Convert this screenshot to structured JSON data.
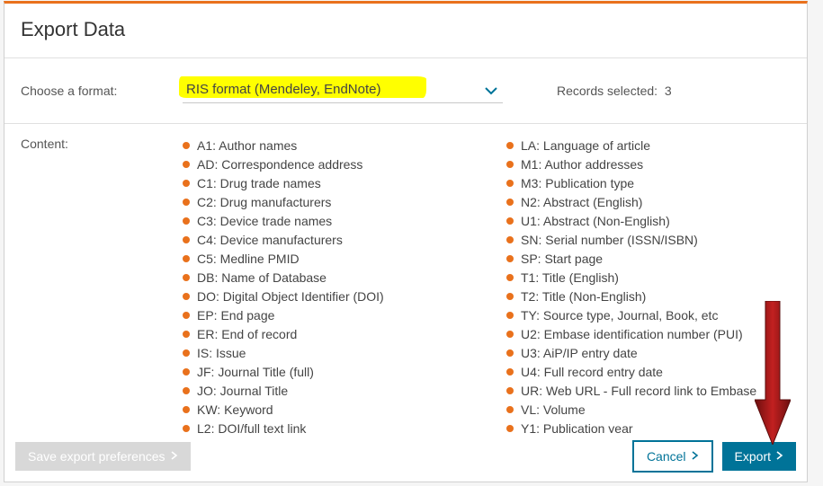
{
  "header": {
    "title": "Export Data"
  },
  "format": {
    "label": "Choose a format:",
    "selected": "RIS format (Mendeley, EndNote)",
    "highlight_color": "#ffff00"
  },
  "records": {
    "label": "Records selected:",
    "count": "3"
  },
  "content": {
    "label": "Content:",
    "bullet_color": "#e9711c",
    "left": [
      "A1: Author names",
      "AD: Correspondence address",
      "C1: Drug trade names",
      "C2: Drug manufacturers",
      "C3: Device trade names",
      "C4: Device manufacturers",
      "C5: Medline PMID",
      "DB: Name of Database",
      "DO: Digital Object Identifier (DOI)",
      "EP: End page",
      "ER: End of record",
      "IS: Issue",
      "JF: Journal Title (full)",
      "JO: Journal Title",
      "KW: Keyword",
      "L2: DOI/full text link"
    ],
    "right": [
      "LA: Language of article",
      "M1: Author addresses",
      "M3: Publication type",
      "N2: Abstract (English)",
      "U1: Abstract (Non-English)",
      "SN: Serial number (ISSN/ISBN)",
      "SP: Start page",
      "T1: Title (English)",
      "T2: Title (Non-English)",
      "TY: Source type, Journal, Book, etc",
      "U2: Embase identification number (PUI)",
      "U3: AiP/IP entry date",
      "U4: Full record entry date",
      "UR: Web URL - Full record link to Embase",
      "VL: Volume",
      "Y1: Publication year"
    ]
  },
  "footer": {
    "save": "Save export preferences",
    "cancel": "Cancel",
    "export": "Export"
  },
  "colors": {
    "accent_orange": "#e9711c",
    "accent_teal": "#007398",
    "disabled_gray": "#d8d8d8",
    "arrow_red": "#a01818"
  }
}
